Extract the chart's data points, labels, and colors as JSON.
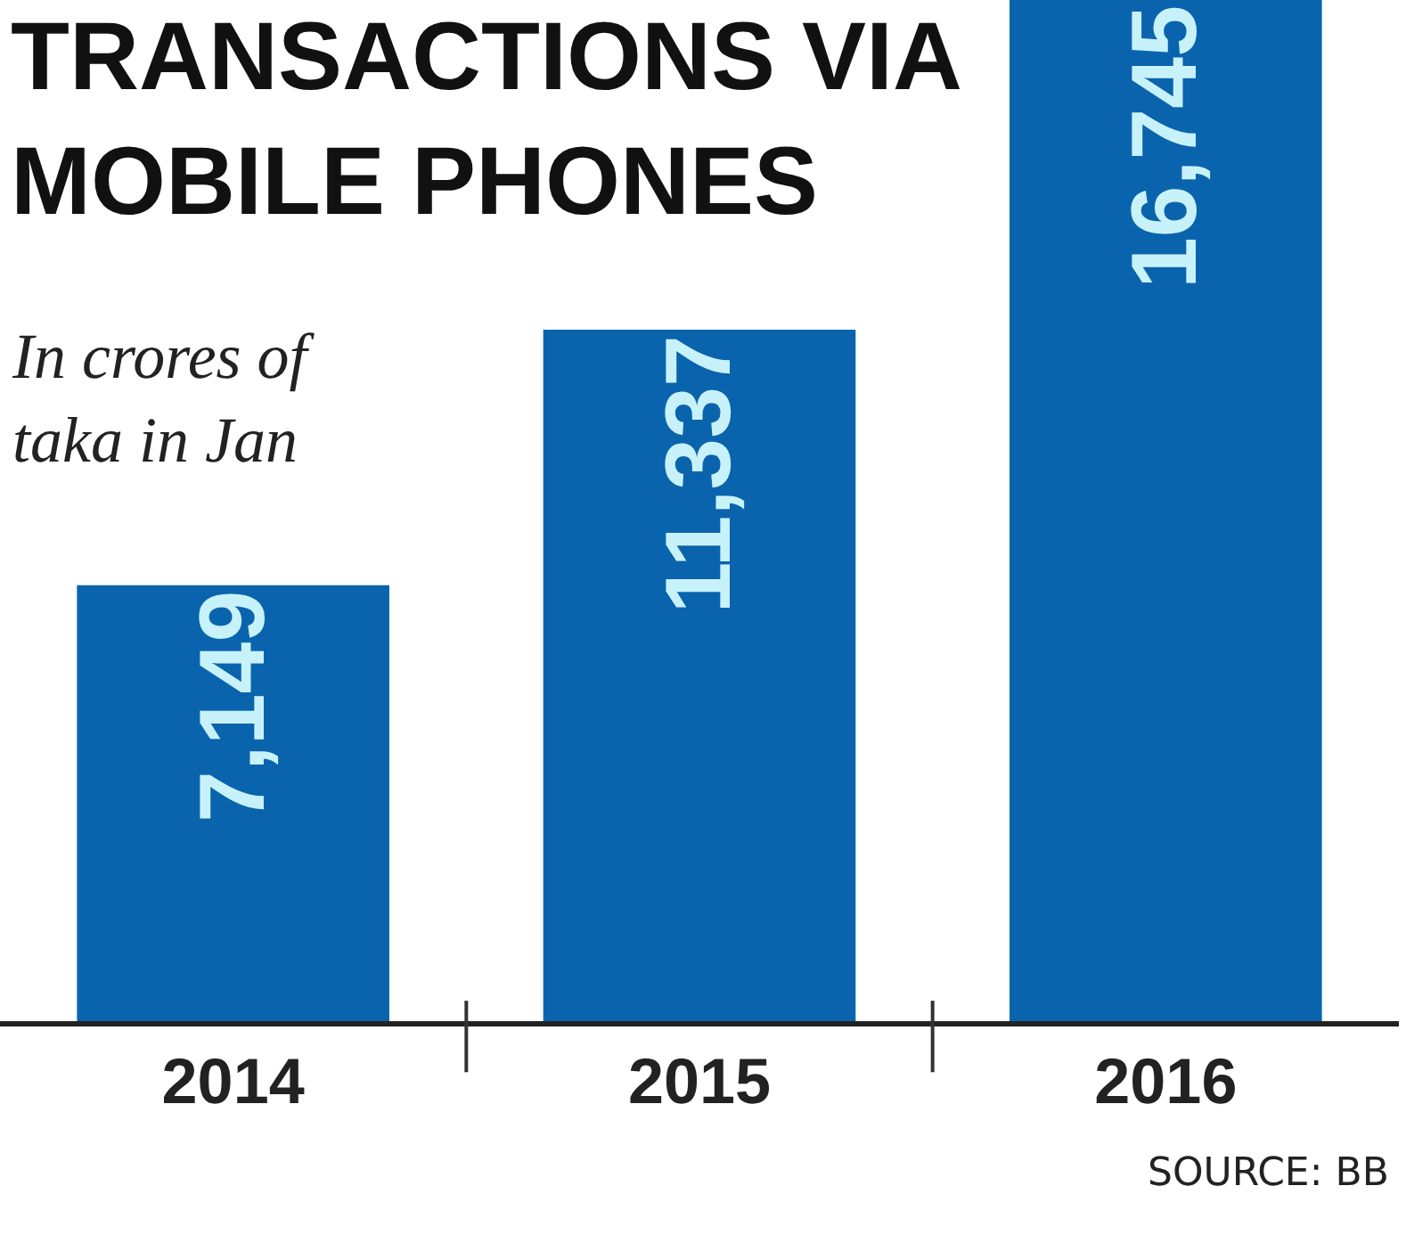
{
  "chart_data": {
    "type": "bar",
    "title": "TRANSACTIONS VIA\nMOBILE PHONES",
    "subtitle": "In crores of\ntaka in Jan",
    "categories": [
      "2014",
      "2015",
      "2016"
    ],
    "values": [
      7149,
      11337,
      16745
    ],
    "value_labels": [
      "7,149",
      "11,337",
      "16,745"
    ],
    "color": "#0a64ad",
    "annotations": [
      "SOURCE: BB"
    ],
    "tick_labels": "x",
    "grid": false
  }
}
